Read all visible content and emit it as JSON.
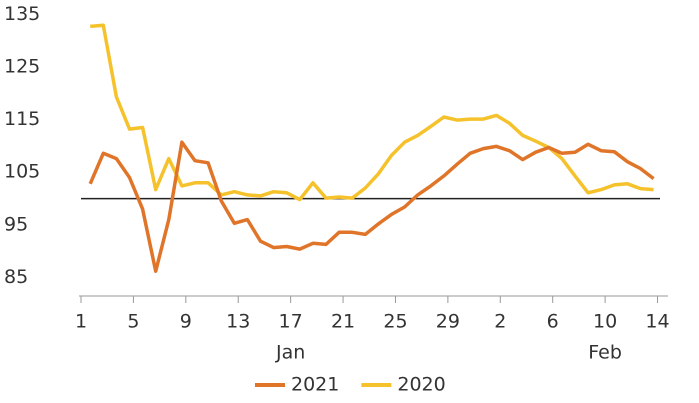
{
  "chart_data": {
    "type": "line",
    "x": [
      1.7,
      2.7,
      3.7,
      4.7,
      5.7,
      6.7,
      7.7,
      8.7,
      9.7,
      10.7,
      11.7,
      12.7,
      13.7,
      14.7,
      15.7,
      16.7,
      17.7,
      18.7,
      19.7,
      20.7,
      21.7,
      22.7,
      23.7,
      24.7,
      25.7,
      26.7,
      27.7,
      28.7,
      29.7,
      30.7,
      31.7,
      32.7,
      33.7,
      34.7,
      35.7,
      36.7,
      37.7,
      38.7,
      39.7,
      40.7,
      41.7,
      42.7,
      43.7,
      44.7
    ],
    "series": [
      {
        "name": "2021",
        "color": "#e0752a",
        "values": [
          102.8,
          108.6,
          107.6,
          104,
          98,
          86.2,
          96,
          110.7,
          107.2,
          106.8,
          99.6,
          95.3,
          96,
          91.9,
          90.7,
          90.9,
          90.4,
          91.5,
          91.3,
          93.6,
          93.6,
          93.2,
          95.2,
          97,
          98.4,
          100.7,
          102.4,
          104.3,
          106.5,
          108.6,
          109.5,
          109.9,
          109.1,
          107.4,
          108.8,
          109.7,
          108.6,
          108.8,
          110.3,
          109.1,
          108.9,
          107,
          105.7,
          103.8
        ]
      },
      {
        "name": "2020",
        "color": "#f5c22c",
        "values": [
          132.7,
          132.9,
          119.3,
          113.2,
          113.5,
          101.7,
          107.6,
          102.4,
          103,
          103,
          100.7,
          101.3,
          100.7,
          100.5,
          101.3,
          101.1,
          99.8,
          103,
          100.1,
          100.3,
          100.1,
          102,
          104.7,
          108.2,
          110.7,
          112,
          113.7,
          115.5,
          114.9,
          115.1,
          115.1,
          115.8,
          114.3,
          112,
          110.9,
          109.7,
          107.6,
          104.3,
          101.1,
          101.7,
          102.6,
          102.8,
          101.9,
          101.7
        ]
      }
    ],
    "xlim": [
      1,
      45.8
    ],
    "xticks": [
      1,
      5,
      9,
      13,
      17,
      21,
      25,
      29,
      {
        "value": 33,
        "label": "2"
      },
      {
        "value": 37,
        "label": "6"
      },
      {
        "value": 41,
        "label": "10"
      },
      {
        "value": 45,
        "label": "14"
      }
    ],
    "month_labels": [
      {
        "label": "Jan",
        "x": 17
      },
      {
        "label": "Feb",
        "x": 41
      }
    ],
    "ylim": [
      81.5,
      136
    ],
    "yticks": [
      85,
      95,
      105,
      115,
      125,
      135
    ],
    "reference_line": 100,
    "grid": false,
    "legend": "bottom"
  }
}
